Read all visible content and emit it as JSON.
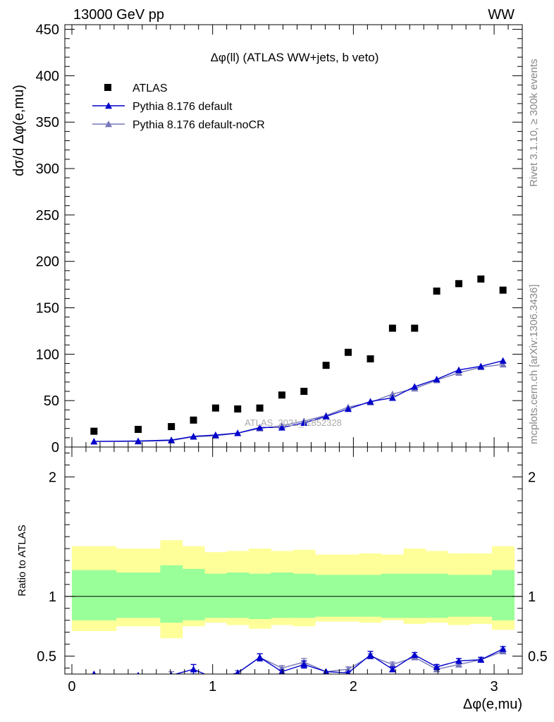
{
  "header": {
    "left": "13000 GeV pp",
    "right": "WW",
    "side_rivet": "Rivet 3.1.10, ≥ 300k events",
    "side_mcplots": "mcplots.cern.ch [arXiv:1306.3436]",
    "watermark": "ATLAS_2021_I1852328"
  },
  "chart_data": [
    {
      "type": "scatter",
      "title": "Δφ(ll) (ATLAS WW+jets, b veto)",
      "ylabel": "dσ/d Δφ(e,mu)",
      "xlabel": "",
      "xlim": [
        -0.05,
        3.2
      ],
      "ylim": [
        0,
        455
      ],
      "y_ticks": [
        0,
        50,
        100,
        150,
        200,
        250,
        300,
        350,
        400,
        450
      ],
      "grid": false,
      "legend_position": "top-left",
      "bin_edges": [
        0,
        0.314,
        0.628,
        0.785,
        0.942,
        1.099,
        1.257,
        1.414,
        1.571,
        1.728,
        1.885,
        2.042,
        2.199,
        2.356,
        2.513,
        2.67,
        2.827,
        2.985,
        3.142
      ],
      "series": [
        {
          "name": "ATLAS",
          "marker": "square",
          "color": "#000000",
          "x": [
            0.157,
            0.471,
            0.707,
            0.864,
            1.021,
            1.178,
            1.335,
            1.492,
            1.649,
            1.806,
            1.963,
            2.121,
            2.278,
            2.435,
            2.592,
            2.749,
            2.906,
            3.063
          ],
          "y": [
            17,
            19,
            22,
            29,
            42,
            41,
            42,
            56,
            60,
            88,
            102,
            95,
            128,
            128,
            168,
            176,
            181,
            169
          ]
        },
        {
          "name": "Pythia 8.176 default",
          "marker": "triangle",
          "color": "#0000cc",
          "x": [
            0.157,
            0.471,
            0.707,
            0.864,
            1.021,
            1.178,
            1.335,
            1.492,
            1.649,
            1.806,
            1.963,
            2.121,
            2.278,
            2.435,
            2.592,
            2.749,
            2.906,
            3.063
          ],
          "y": [
            6,
            6.5,
            7.5,
            11.5,
            13,
            15,
            21,
            21,
            26,
            33,
            41,
            49,
            53,
            65,
            73,
            83,
            87,
            93
          ]
        },
        {
          "name": "Pythia 8.176 default-noCR",
          "marker": "triangle",
          "color": "#7777bb",
          "x": [
            0.157,
            0.471,
            0.707,
            0.864,
            1.021,
            1.178,
            1.335,
            1.492,
            1.649,
            1.806,
            1.963,
            2.121,
            2.278,
            2.435,
            2.592,
            2.749,
            2.906,
            3.063
          ],
          "y": [
            6,
            6,
            7,
            11,
            12,
            15,
            20,
            23,
            28,
            34,
            43,
            48,
            57,
            63,
            72,
            80,
            86,
            89
          ]
        }
      ]
    },
    {
      "type": "line",
      "title": "",
      "ylabel": "Ratio to ATLAS",
      "xlabel": "Δφ(e,mu)",
      "xlim": [
        -0.05,
        3.2
      ],
      "ylim": [
        0.35,
        2.25
      ],
      "x_ticks": [
        0,
        1,
        2,
        3
      ],
      "y_ticks": [
        0.5,
        1,
        2
      ],
      "grid": false,
      "reference_line": 1,
      "bin_edges": [
        0,
        0.314,
        0.628,
        0.785,
        0.942,
        1.099,
        1.257,
        1.414,
        1.571,
        1.728,
        1.885,
        2.042,
        2.199,
        2.356,
        2.513,
        2.67,
        2.827,
        2.985,
        3.142
      ],
      "bands": [
        {
          "name": "stat",
          "color": "#99ff99",
          "upper": [
            1.22,
            1.2,
            1.26,
            1.23,
            1.19,
            1.2,
            1.19,
            1.2,
            1.19,
            1.18,
            1.18,
            1.18,
            1.19,
            1.19,
            1.19,
            1.18,
            1.18,
            1.22
          ],
          "lower": [
            0.8,
            0.82,
            0.78,
            0.8,
            0.82,
            0.82,
            0.81,
            0.82,
            0.82,
            0.83,
            0.83,
            0.83,
            0.82,
            0.82,
            0.82,
            0.83,
            0.83,
            0.8
          ]
        },
        {
          "name": "total",
          "color": "#ffff99",
          "upper": [
            1.42,
            1.4,
            1.47,
            1.42,
            1.37,
            1.38,
            1.4,
            1.38,
            1.39,
            1.35,
            1.35,
            1.36,
            1.35,
            1.4,
            1.38,
            1.36,
            1.36,
            1.42
          ],
          "lower": [
            0.71,
            0.75,
            0.65,
            0.75,
            0.78,
            0.76,
            0.73,
            0.76,
            0.75,
            0.79,
            0.79,
            0.78,
            0.8,
            0.77,
            0.78,
            0.76,
            0.77,
            0.72
          ]
        }
      ],
      "series": [
        {
          "name": "Pythia 8.176 default",
          "marker": "triangle",
          "color": "#0000cc",
          "x": [
            0.157,
            0.471,
            0.707,
            0.864,
            1.021,
            1.178,
            1.335,
            1.492,
            1.649,
            1.806,
            1.963,
            2.121,
            2.278,
            2.435,
            2.592,
            2.749,
            2.906,
            3.063
          ],
          "y": [
            0.35,
            0.34,
            0.34,
            0.39,
            0.31,
            0.36,
            0.49,
            0.37,
            0.43,
            0.37,
            0.36,
            0.51,
            0.39,
            0.51,
            0.41,
            0.46,
            0.47,
            0.56
          ],
          "err": [
            0,
            0,
            0,
            0.04,
            0,
            0,
            0.03,
            0,
            0.03,
            0,
            0,
            0.03,
            0.02,
            0.02,
            0.02,
            0.02,
            0.02,
            0.02
          ]
        },
        {
          "name": "Pythia 8.176 default-noCR",
          "marker": "triangle",
          "color": "#7777bb",
          "x": [
            0.157,
            0.471,
            0.707,
            0.864,
            1.021,
            1.178,
            1.335,
            1.492,
            1.649,
            1.806,
            1.963,
            2.121,
            2.278,
            2.435,
            2.592,
            2.749,
            2.906,
            3.063
          ],
          "y": [
            0.35,
            0.32,
            0.34,
            0.33,
            0.29,
            0.36,
            0.49,
            0.4,
            0.45,
            0.37,
            0.39,
            0.5,
            0.43,
            0.49,
            0.39,
            0.43,
            0.47,
            0.54
          ],
          "err": [
            0,
            0,
            0.03,
            0,
            0,
            0.02,
            0.03,
            0.02,
            0.03,
            0,
            0.02,
            0.02,
            0.02,
            0.02,
            0.02,
            0.02,
            0.01,
            0.02
          ]
        }
      ]
    }
  ]
}
